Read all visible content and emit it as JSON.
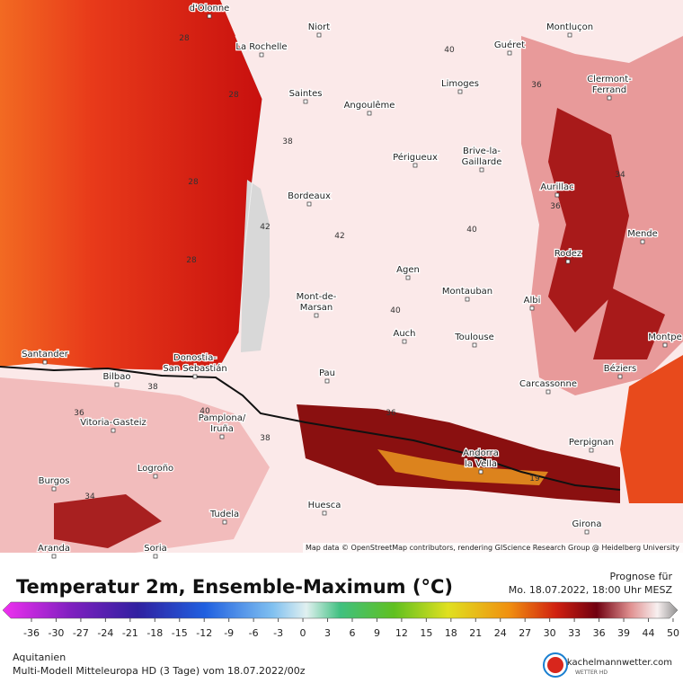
{
  "map": {
    "cities": [
      [
        "d'Olonne"
      ],
      [
        "Niort"
      ],
      [
        "La Rochelle"
      ],
      [
        "Guéret"
      ],
      [
        "Montluçon"
      ],
      [
        "Saintes"
      ],
      [
        "Angoulême"
      ],
      [
        "Limoges"
      ],
      [
        "Clermont-",
        "Ferrand"
      ],
      [
        "Périgueux"
      ],
      [
        "Brive-la-",
        "Gaillarde"
      ],
      [
        "Aurillac"
      ],
      [
        "Bordeaux"
      ],
      [
        "Mende"
      ],
      [
        "Rodez"
      ],
      [
        "Agen"
      ],
      [
        "Montauban"
      ],
      [
        "Albi"
      ],
      [
        "Mont-de-",
        "Marsan"
      ],
      [
        "Auch"
      ],
      [
        "Toulouse"
      ],
      [
        "Montpe"
      ],
      [
        "Santander"
      ],
      [
        "Bilbao"
      ],
      [
        "Donostia-",
        "San Sebastián"
      ],
      [
        "Pau"
      ],
      [
        "Béziers"
      ],
      [
        "Carcassonne"
      ],
      [
        "Vitoria-Gasteiz"
      ],
      [
        "Pamplona/",
        "Iruña"
      ],
      [
        "Perpignan"
      ],
      [
        "Andorra",
        "la Vella"
      ],
      [
        "Logroño"
      ],
      [
        "Burgos"
      ],
      [
        "Huesca"
      ],
      [
        "Tudela"
      ],
      [
        "Girona"
      ],
      [
        "Aranda"
      ],
      [
        "Soria"
      ]
    ],
    "contours": [
      28,
      28,
      28,
      28,
      38,
      40,
      42,
      42,
      40,
      40,
      36,
      36,
      36,
      34,
      34,
      38,
      38,
      40,
      36,
      19
    ],
    "credit": "Map data © OpenStreetMap contributors, rendering GIScience Research Group @ Heidelberg University"
  },
  "title": "Temperatur 2m, Ensemble-Maximum (°C)",
  "forecast": {
    "label": "Prognose für",
    "time": "Mo. 18.07.2022, 18:00 Uhr MESZ"
  },
  "legend": {
    "ticks": [
      -36,
      -30,
      -27,
      -24,
      -21,
      -18,
      -15,
      -12,
      -9,
      -6,
      -3,
      0,
      3,
      6,
      9,
      12,
      15,
      18,
      21,
      24,
      27,
      30,
      33,
      36,
      39,
      44,
      50
    ]
  },
  "region": "Aquitanien",
  "model": "Multi-Modell Mitteleuropa HD (3 Tage) vom  18.07.2022/00z",
  "brand": {
    "name": "kachelmannwetter.com",
    "sub": "WETTER HD"
  }
}
